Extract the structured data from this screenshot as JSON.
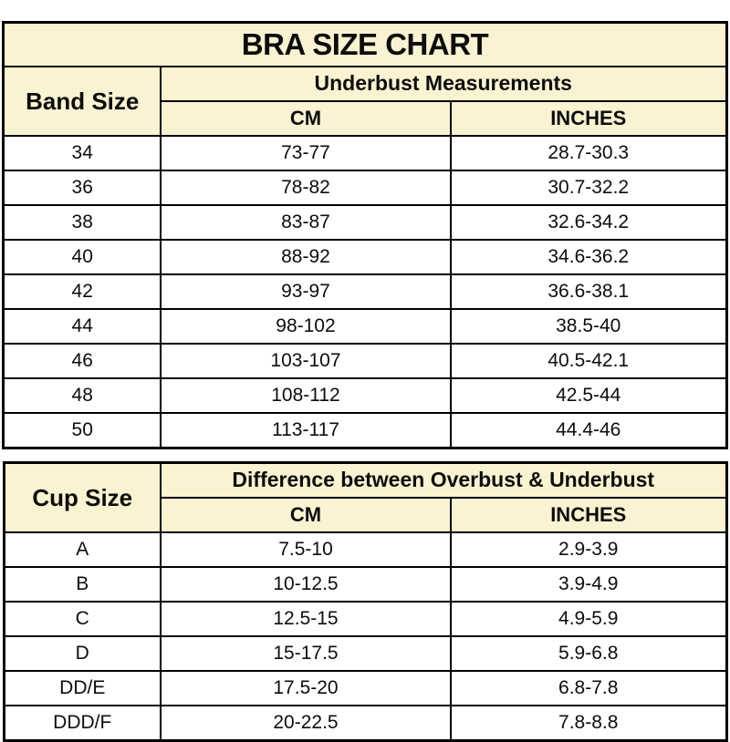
{
  "colors": {
    "header_background": "#faf3d1",
    "grid_border": "#000000",
    "page_background": "#ffffff",
    "text": "#0d0d0d"
  },
  "chart_data": [
    {
      "type": "table",
      "title": "BRA SIZE CHART",
      "row_header": "Band Size",
      "group_header": "Underbust Measurements",
      "columns": [
        "CM",
        "INCHES"
      ],
      "rows": [
        [
          "34",
          "73-77",
          "28.7-30.3"
        ],
        [
          "36",
          "78-82",
          "30.7-32.2"
        ],
        [
          "38",
          "83-87",
          "32.6-34.2"
        ],
        [
          "40",
          "88-92",
          "34.6-36.2"
        ],
        [
          "42",
          "93-97",
          "36.6-38.1"
        ],
        [
          "44",
          "98-102",
          "38.5-40"
        ],
        [
          "46",
          "103-107",
          "40.5-42.1"
        ],
        [
          "48",
          "108-112",
          "42.5-44"
        ],
        [
          "50",
          "113-117",
          "44.4-46"
        ]
      ]
    },
    {
      "type": "table",
      "title": "",
      "row_header": "Cup Size",
      "group_header": "Difference between Overbust & Underbust",
      "columns": [
        "CM",
        "INCHES"
      ],
      "rows": [
        [
          "A",
          "7.5-10",
          "2.9-3.9"
        ],
        [
          "B",
          "10-12.5",
          "3.9-4.9"
        ],
        [
          "C",
          "12.5-15",
          "4.9-5.9"
        ],
        [
          "D",
          "15-17.5",
          "5.9-6.8"
        ],
        [
          "DD/E",
          "17.5-20",
          "6.8-7.8"
        ],
        [
          "DDD/F",
          "20-22.5",
          "7.8-8.8"
        ]
      ]
    }
  ]
}
